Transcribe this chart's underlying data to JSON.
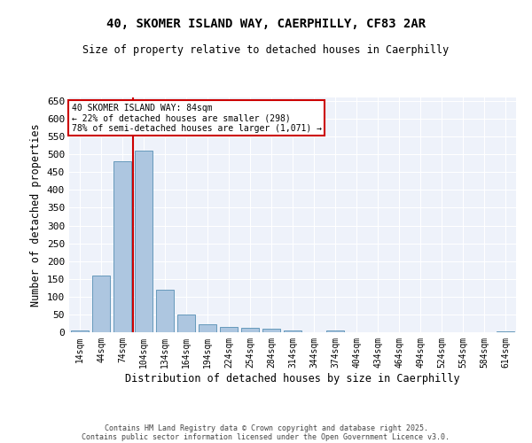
{
  "title_line1": "40, SKOMER ISLAND WAY, CAERPHILLY, CF83 2AR",
  "title_line2": "Size of property relative to detached houses in Caerphilly",
  "xlabel": "Distribution of detached houses by size in Caerphilly",
  "ylabel": "Number of detached properties",
  "bar_labels": [
    "14sqm",
    "44sqm",
    "74sqm",
    "104sqm",
    "134sqm",
    "164sqm",
    "194sqm",
    "224sqm",
    "254sqm",
    "284sqm",
    "314sqm",
    "344sqm",
    "374sqm",
    "404sqm",
    "434sqm",
    "464sqm",
    "494sqm",
    "524sqm",
    "554sqm",
    "584sqm",
    "614sqm"
  ],
  "bar_values": [
    5,
    160,
    480,
    510,
    120,
    50,
    22,
    14,
    12,
    9,
    6,
    0,
    4,
    0,
    0,
    0,
    0,
    0,
    0,
    0,
    3
  ],
  "bar_color": "#adc6e0",
  "bar_edge_color": "#6699bb",
  "vline_color": "#cc0000",
  "annotation_title": "40 SKOMER ISLAND WAY: 84sqm",
  "annotation_line2": "← 22% of detached houses are smaller (298)",
  "annotation_line3": "78% of semi-detached houses are larger (1,071) →",
  "annotation_box_color": "#cc0000",
  "ylim": [
    0,
    660
  ],
  "yticks": [
    0,
    50,
    100,
    150,
    200,
    250,
    300,
    350,
    400,
    450,
    500,
    550,
    600,
    650
  ],
  "bg_color": "#eef2fa",
  "footer_line1": "Contains HM Land Registry data © Crown copyright and database right 2025.",
  "footer_line2": "Contains public sector information licensed under the Open Government Licence v3.0."
}
